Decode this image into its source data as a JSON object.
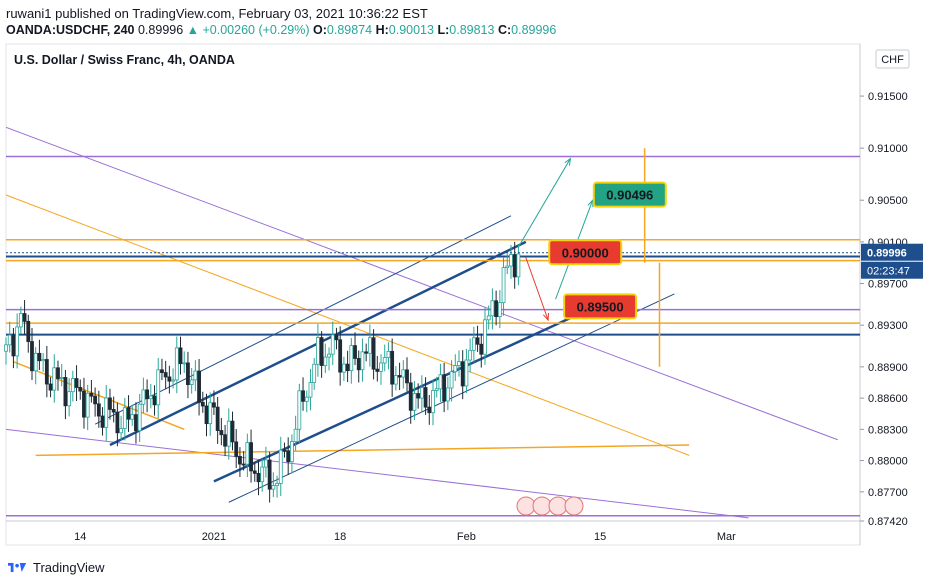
{
  "header": {
    "publisher_line": "ruwani1 published on TradingView.com, February 03, 2021 10:36:22 EST",
    "symbol": "OANDA:USDCHF, 240",
    "last": "0.89996",
    "change": "▲ +0.00260 (+0.29%)",
    "o_label": "O:",
    "o": "0.89874",
    "h_label": "H:",
    "h": "0.90013",
    "l_label": "L:",
    "l": "0.89813",
    "c_label": "C:",
    "c": "0.89996"
  },
  "footer": {
    "brand": "TradingView"
  },
  "colors": {
    "purple": "#9c6fd6",
    "orange": "#f5a623",
    "navy": "#1f4e8c",
    "up": "#26a69a",
    "down": "#1f2a36",
    "price_tag": "#1f4e8c",
    "teal_box": "#22a383",
    "red_box": "#e63b2e",
    "yellow_border": "#f5d20a"
  },
  "chart_data": {
    "type": "candlestick",
    "title": "U.S. Dollar / Swiss Franc, 4h, OANDA",
    "currency_button": "CHF",
    "ylim": [
      0.8742,
      0.92
    ],
    "y_ticks": [
      0.915,
      0.91,
      0.905,
      0.901,
      0.897,
      0.893,
      0.889,
      0.886,
      0.883,
      0.88,
      0.877,
      0.8742
    ],
    "y_tick_labels": [
      "0.91500",
      "0.91000",
      "0.90500",
      "0.90100",
      "0.89700",
      "0.89300",
      "0.88900",
      "0.88600",
      "0.88300",
      "0.88000",
      "0.87700",
      "0.87420"
    ],
    "x_labels": [
      "14",
      "2021",
      "18",
      "Feb",
      "15",
      "Mar"
    ],
    "x_label_days": [
      6,
      24,
      41,
      58,
      76,
      93
    ],
    "day_range": [
      -4,
      111
    ],
    "last_price": 0.89996,
    "last_price_label": "0.89996",
    "countdown_label": "02:23:47",
    "annotations": [
      {
        "label": "0.90496",
        "price": 0.90496,
        "style": "teal"
      },
      {
        "label": "0.90000",
        "price": 0.9,
        "style": "red"
      },
      {
        "label": "0.89500",
        "price": 0.895,
        "style": "red"
      }
    ],
    "close_path": [
      [
        -4,
        0.8905
      ],
      [
        -2,
        0.8935
      ],
      [
        0,
        0.8895
      ],
      [
        2,
        0.888
      ],
      [
        4,
        0.887
      ],
      [
        6,
        0.8865
      ],
      [
        8,
        0.885
      ],
      [
        10,
        0.8845
      ],
      [
        12,
        0.8835
      ],
      [
        14,
        0.885
      ],
      [
        16,
        0.887
      ],
      [
        18,
        0.8885
      ],
      [
        20,
        0.8895
      ],
      [
        22,
        0.886
      ],
      [
        24,
        0.884
      ],
      [
        26,
        0.882
      ],
      [
        28,
        0.88
      ],
      [
        30,
        0.879
      ],
      [
        32,
        0.878
      ],
      [
        34,
        0.881
      ],
      [
        36,
        0.886
      ],
      [
        38,
        0.89
      ],
      [
        40,
        0.891
      ],
      [
        42,
        0.889
      ],
      [
        44,
        0.8905
      ],
      [
        46,
        0.8895
      ],
      [
        48,
        0.889
      ],
      [
        50,
        0.887
      ],
      [
        52,
        0.8855
      ],
      [
        54,
        0.8865
      ],
      [
        56,
        0.888
      ],
      [
        58,
        0.8895
      ],
      [
        60,
        0.892
      ],
      [
        62,
        0.895
      ],
      [
        63,
        0.8975
      ],
      [
        64,
        0.899
      ],
      [
        65,
        0.89996
      ]
    ],
    "horizontal_lines": [
      {
        "price": 0.9092,
        "color": "purple"
      },
      {
        "price": 0.9012,
        "color": "orange"
      },
      {
        "price": 0.8996,
        "color": "navy"
      },
      {
        "price": 0.8992,
        "color": "orange"
      },
      {
        "price": 0.8945,
        "color": "purple"
      },
      {
        "price": 0.8932,
        "color": "orange"
      },
      {
        "price": 0.8921,
        "color": "navy"
      },
      {
        "price": 0.8747,
        "color": "purple"
      }
    ]
  }
}
